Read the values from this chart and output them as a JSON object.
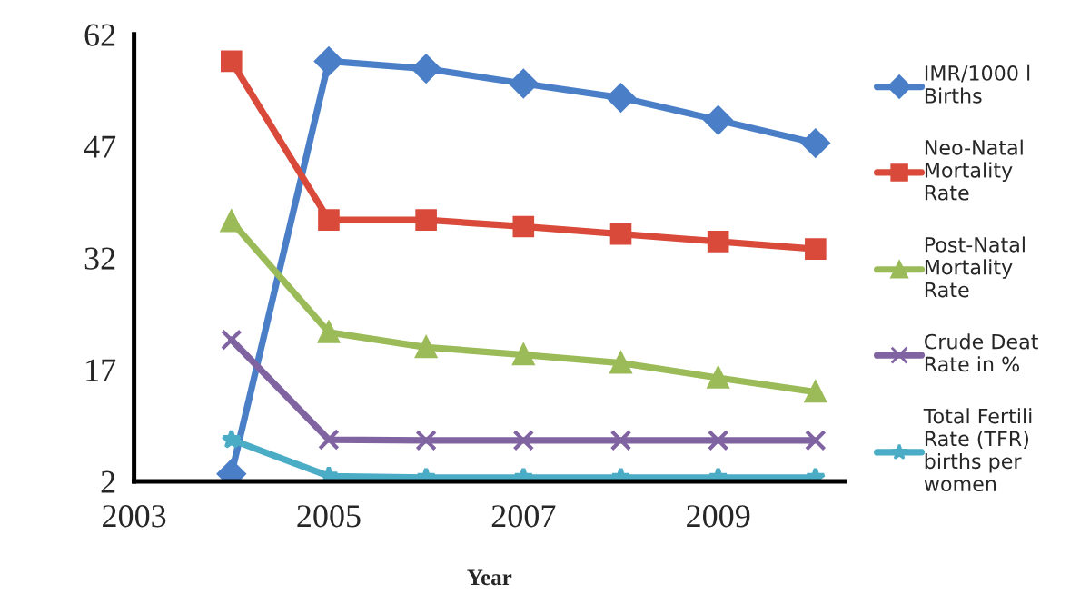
{
  "chart_data": {
    "type": "line",
    "xlabel": "Year",
    "x": [
      2004,
      2005,
      2006,
      2007,
      2008,
      2009,
      2010
    ],
    "xlim": [
      2003,
      2010.3
    ],
    "xticks": [
      2003,
      2005,
      2007,
      2009
    ],
    "ylim": [
      2,
      62
    ],
    "yticks": [
      2,
      17,
      32,
      47,
      62
    ],
    "grid": false,
    "legend": "right",
    "line_style": "solid",
    "series": [
      {
        "name": "IMR/1000 l\nBirths",
        "color": "#4a7fc8",
        "marker": "diamond",
        "values": [
          3,
          58.4,
          57.4,
          55.4,
          53.5,
          50.5,
          47.4
        ]
      },
      {
        "name": "Neo-Natal\nMortality\nRate",
        "color": "#d94a3a",
        "marker": "square",
        "values": [
          58.4,
          37.1,
          37.1,
          36.2,
          35.2,
          34.2,
          33.2
        ]
      },
      {
        "name": "Post-Natal\nMortality\nRate",
        "color": "#9bbb59",
        "marker": "triangle",
        "values": [
          36.9,
          22,
          20,
          19,
          17.9,
          15.9,
          14
        ]
      },
      {
        "name": "Crude Deat\nRate in %",
        "color": "#8064a2",
        "marker": "cross",
        "values": [
          21,
          7.6,
          7.5,
          7.5,
          7.5,
          7.5,
          7.5
        ]
      },
      {
        "name": "Total Fertili\nRate (TFR)\nbirths per\nwomen",
        "color": "#4bacc6",
        "marker": "star",
        "values": [
          7.6,
          2.7,
          2.5,
          2.5,
          2.5,
          2.5,
          2.5
        ]
      }
    ]
  }
}
